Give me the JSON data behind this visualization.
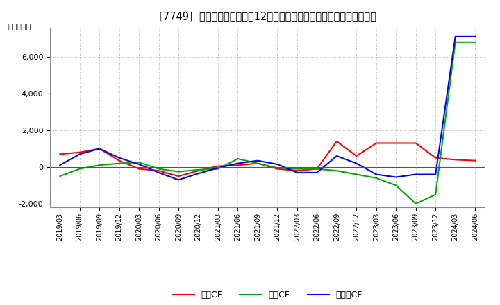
{
  "title": "[7749]  キャッシュフローの12か月移動合計の対前年同期増減額の推移",
  "ylabel": "（百万円）",
  "background_color": "#ffffff",
  "grid_color": "#aaaaaa",
  "x_labels": [
    "2019/03",
    "2019/06",
    "2019/09",
    "2019/12",
    "2020/03",
    "2020/06",
    "2020/09",
    "2020/12",
    "2021/03",
    "2021/06",
    "2021/09",
    "2021/12",
    "2022/03",
    "2022/06",
    "2022/09",
    "2022/12",
    "2023/03",
    "2023/06",
    "2023/09",
    "2023/12",
    "2024/03",
    "2024/06"
  ],
  "operating_cf": [
    700,
    800,
    1000,
    350,
    -100,
    -200,
    -500,
    -200,
    50,
    100,
    200,
    -100,
    -200,
    -100,
    1400,
    600,
    1300,
    1300,
    1300,
    500,
    400,
    350
  ],
  "investing_cf": [
    -500,
    -100,
    100,
    200,
    250,
    -100,
    -250,
    -150,
    -100,
    450,
    200,
    -50,
    -100,
    -100,
    -200,
    -400,
    -600,
    -1000,
    -2000,
    -1500,
    6800,
    6800
  ],
  "free_cf": [
    100,
    700,
    1000,
    500,
    150,
    -300,
    -700,
    -350,
    -50,
    200,
    350,
    150,
    -300,
    -300,
    600,
    200,
    -400,
    -550,
    -400,
    -400,
    7100,
    7100
  ],
  "operating_color": "#ff0000",
  "investing_color": "#00aa00",
  "free_color": "#0000ff",
  "ylim": [
    -2200,
    7600
  ],
  "yticks": [
    -2000,
    0,
    2000,
    4000,
    6000
  ],
  "legend_labels": [
    "営業CF",
    "投資CF",
    "フリーCF"
  ]
}
